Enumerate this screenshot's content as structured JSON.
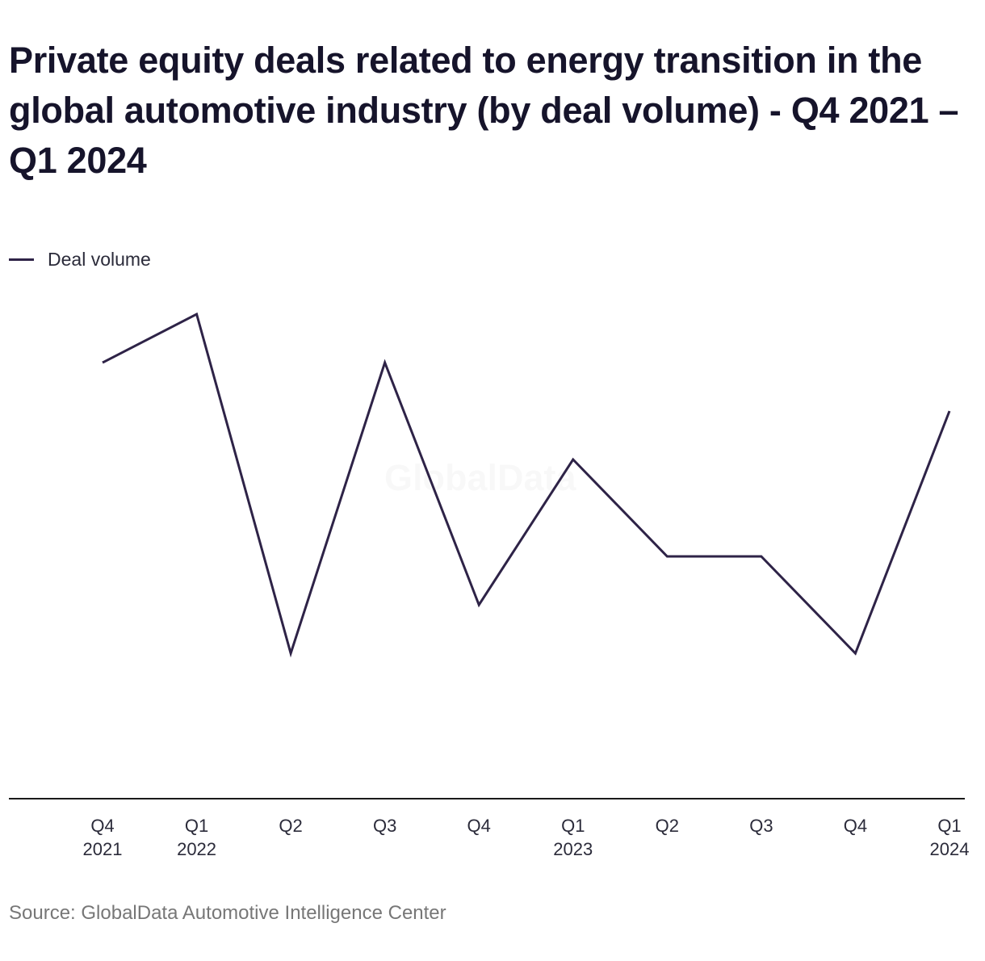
{
  "title": "Private equity deals related to energy transition in the global automotive industry (by deal volume) - Q4 2021 – Q1 2024",
  "legend": {
    "label": "Deal volume"
  },
  "watermark": "GlobalData",
  "source": "Source: GlobalData Automotive Intelligence Center",
  "colors": {
    "line": "#2e2347",
    "axis": "#1a1a1a",
    "text": "#16142b"
  },
  "chart_data": {
    "type": "line",
    "categories": [
      [
        "Q4",
        "2021"
      ],
      [
        "Q1",
        "2022"
      ],
      [
        "Q2",
        ""
      ],
      [
        "Q3",
        ""
      ],
      [
        "Q4",
        ""
      ],
      [
        "Q1",
        "2023"
      ],
      [
        "Q2",
        ""
      ],
      [
        "Q3",
        ""
      ],
      [
        "Q4",
        ""
      ],
      [
        "Q1",
        "2024"
      ]
    ],
    "series": [
      {
        "name": "Deal volume",
        "values": [
          9,
          10,
          3,
          9,
          4,
          7,
          5,
          5,
          3,
          8
        ]
      }
    ],
    "ylim": [
      0,
      10.5
    ],
    "grid": false,
    "legend_position": "top-left"
  }
}
